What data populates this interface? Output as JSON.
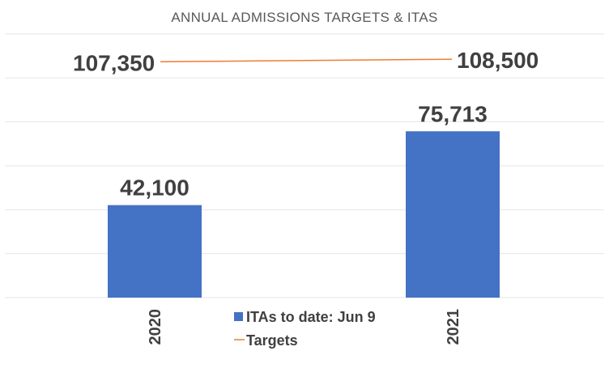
{
  "chart_data": {
    "type": "bar",
    "title": "ANNUAL ADMISSIONS TARGETS & ITAS",
    "categories": [
      "2020",
      "2021"
    ],
    "series": [
      {
        "name": "ITAs to date: Jun 9",
        "kind": "bar",
        "color": "#4472c4",
        "values": [
          42100,
          75713
        ],
        "labels": [
          "42,100",
          "75,713"
        ]
      },
      {
        "name": "Targets",
        "kind": "line",
        "color": "#ed7d31",
        "values": [
          107350,
          108500
        ],
        "labels": [
          "107,350",
          "108,500"
        ]
      }
    ],
    "ylim": [
      0,
      120000
    ],
    "grid": true,
    "legend_position": "bottom-center"
  }
}
